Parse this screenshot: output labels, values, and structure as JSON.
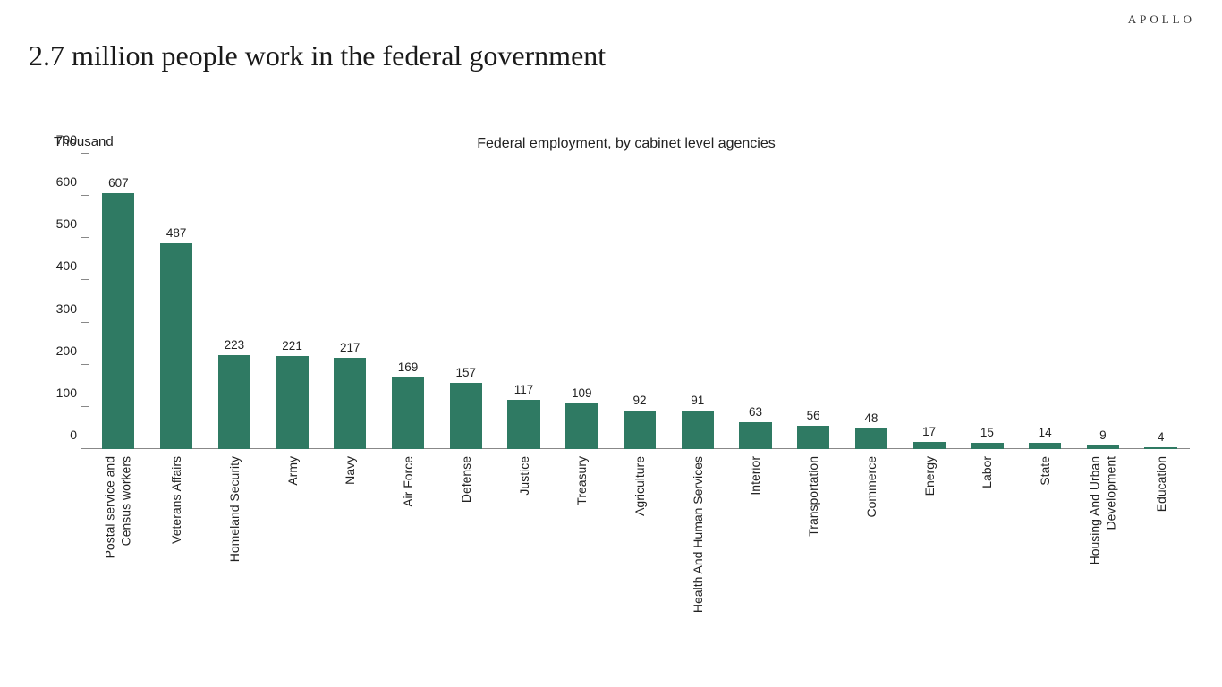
{
  "brand": "APOLLO",
  "page_title": "2.7 million people work in the federal government",
  "chart": {
    "type": "bar",
    "unit_label": "Thousand",
    "title": "Federal employment, by cabinet level agencies",
    "bar_color": "#2f7a63",
    "background_color": "#ffffff",
    "axis_color": "#888888",
    "text_color": "#1a1a1a",
    "title_fontsize": 16,
    "unit_fontsize": 15,
    "value_fontsize": 13.5,
    "xlabel_fontsize": 14,
    "ytick_fontsize": 14,
    "ylim": [
      0,
      700
    ],
    "ytick_step": 100,
    "yticks": [
      0,
      100,
      200,
      300,
      400,
      500,
      600,
      700
    ],
    "bar_width_ratio": 0.56,
    "categories": [
      "Postal service and Census workers",
      "Veterans Affairs",
      "Homeland Security",
      "Army",
      "Navy",
      "Air Force",
      "Defense",
      "Justice",
      "Treasury",
      "Agriculture",
      "Health And Human Services",
      "Interior",
      "Transportation",
      "Commerce",
      "Energy",
      "Labor",
      "State",
      "Housing And Urban Development",
      "Education"
    ],
    "values": [
      607,
      487,
      223,
      221,
      217,
      169,
      157,
      117,
      109,
      92,
      91,
      63,
      56,
      48,
      17,
      15,
      14,
      9,
      4
    ]
  }
}
